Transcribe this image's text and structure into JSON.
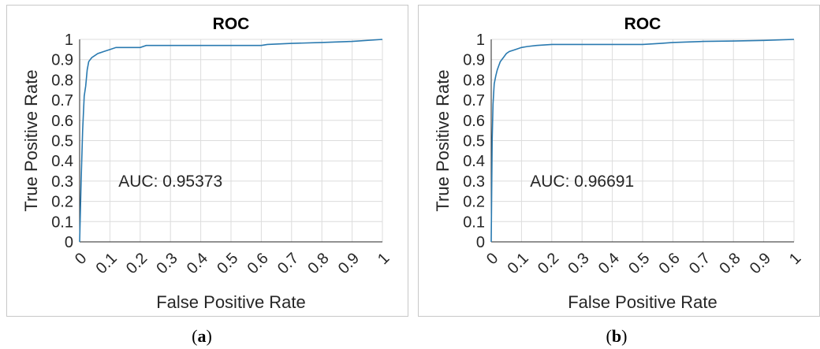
{
  "chart_data": [
    {
      "type": "line",
      "title": "ROC",
      "xlabel": "False Positive Rate",
      "ylabel": "True Positive Rate",
      "xlim": [
        0,
        1
      ],
      "ylim": [
        0,
        1
      ],
      "xticks": [
        "0",
        "0.1",
        "0.2",
        "0.3",
        "0.4",
        "0.5",
        "0.6",
        "0.7",
        "0.8",
        "0.9",
        "1"
      ],
      "yticks": [
        "0",
        "0.1",
        "0.2",
        "0.3",
        "0.4",
        "0.5",
        "0.6",
        "0.7",
        "0.8",
        "0.9",
        "1"
      ],
      "xtick_values": [
        0,
        0.1,
        0.2,
        0.3,
        0.4,
        0.5,
        0.6,
        0.7,
        0.8,
        0.9,
        1
      ],
      "ytick_values": [
        0,
        0.1,
        0.2,
        0.3,
        0.4,
        0.5,
        0.6,
        0.7,
        0.8,
        0.9,
        1
      ],
      "grid": true,
      "line_color": "#2a7ab0",
      "annotation": "AUC: 0.95373",
      "series": [
        {
          "x": [
            0,
            0.005,
            0.01,
            0.015,
            0.02,
            0.025,
            0.03,
            0.035,
            0.04,
            0.05,
            0.06,
            0.08,
            0.1,
            0.12,
            0.15,
            0.18,
            0.2,
            0.22,
            0.28,
            0.35,
            0.5,
            0.6,
            0.62,
            0.7,
            0.8,
            0.9,
            1.0
          ],
          "y": [
            0,
            0.3,
            0.55,
            0.72,
            0.77,
            0.85,
            0.89,
            0.9,
            0.91,
            0.92,
            0.93,
            0.94,
            0.95,
            0.96,
            0.96,
            0.96,
            0.96,
            0.97,
            0.97,
            0.97,
            0.97,
            0.97,
            0.975,
            0.98,
            0.985,
            0.99,
            1.0
          ]
        }
      ],
      "caption_label": "a"
    },
    {
      "type": "line",
      "title": "ROC",
      "xlabel": "False Positive Rate",
      "ylabel": "True Positive Rate",
      "xlim": [
        0,
        1
      ],
      "ylim": [
        0,
        1
      ],
      "xticks": [
        "0",
        "0.1",
        "0.2",
        "0.3",
        "0.4",
        "0.5",
        "0.6",
        "0.7",
        "0.8",
        "0.9",
        "1"
      ],
      "yticks": [
        "0",
        "0.1",
        "0.2",
        "0.3",
        "0.4",
        "0.5",
        "0.6",
        "0.7",
        "0.8",
        "0.9",
        "1"
      ],
      "xtick_values": [
        0,
        0.1,
        0.2,
        0.3,
        0.4,
        0.5,
        0.6,
        0.7,
        0.8,
        0.9,
        1
      ],
      "ytick_values": [
        0,
        0.1,
        0.2,
        0.3,
        0.4,
        0.5,
        0.6,
        0.7,
        0.8,
        0.9,
        1
      ],
      "grid": true,
      "line_color": "#2a7ab0",
      "annotation": "AUC: 0.96691",
      "series": [
        {
          "x": [
            0,
            0.003,
            0.006,
            0.01,
            0.015,
            0.02,
            0.025,
            0.03,
            0.04,
            0.05,
            0.06,
            0.07,
            0.08,
            0.1,
            0.12,
            0.15,
            0.2,
            0.3,
            0.4,
            0.5,
            0.56,
            0.6,
            0.7,
            0.8,
            0.9,
            1.0
          ],
          "y": [
            0,
            0.5,
            0.68,
            0.78,
            0.82,
            0.85,
            0.87,
            0.89,
            0.91,
            0.93,
            0.94,
            0.945,
            0.95,
            0.96,
            0.965,
            0.97,
            0.975,
            0.975,
            0.975,
            0.975,
            0.98,
            0.985,
            0.99,
            0.992,
            0.995,
            1.0
          ]
        }
      ],
      "caption_label": "b"
    }
  ]
}
